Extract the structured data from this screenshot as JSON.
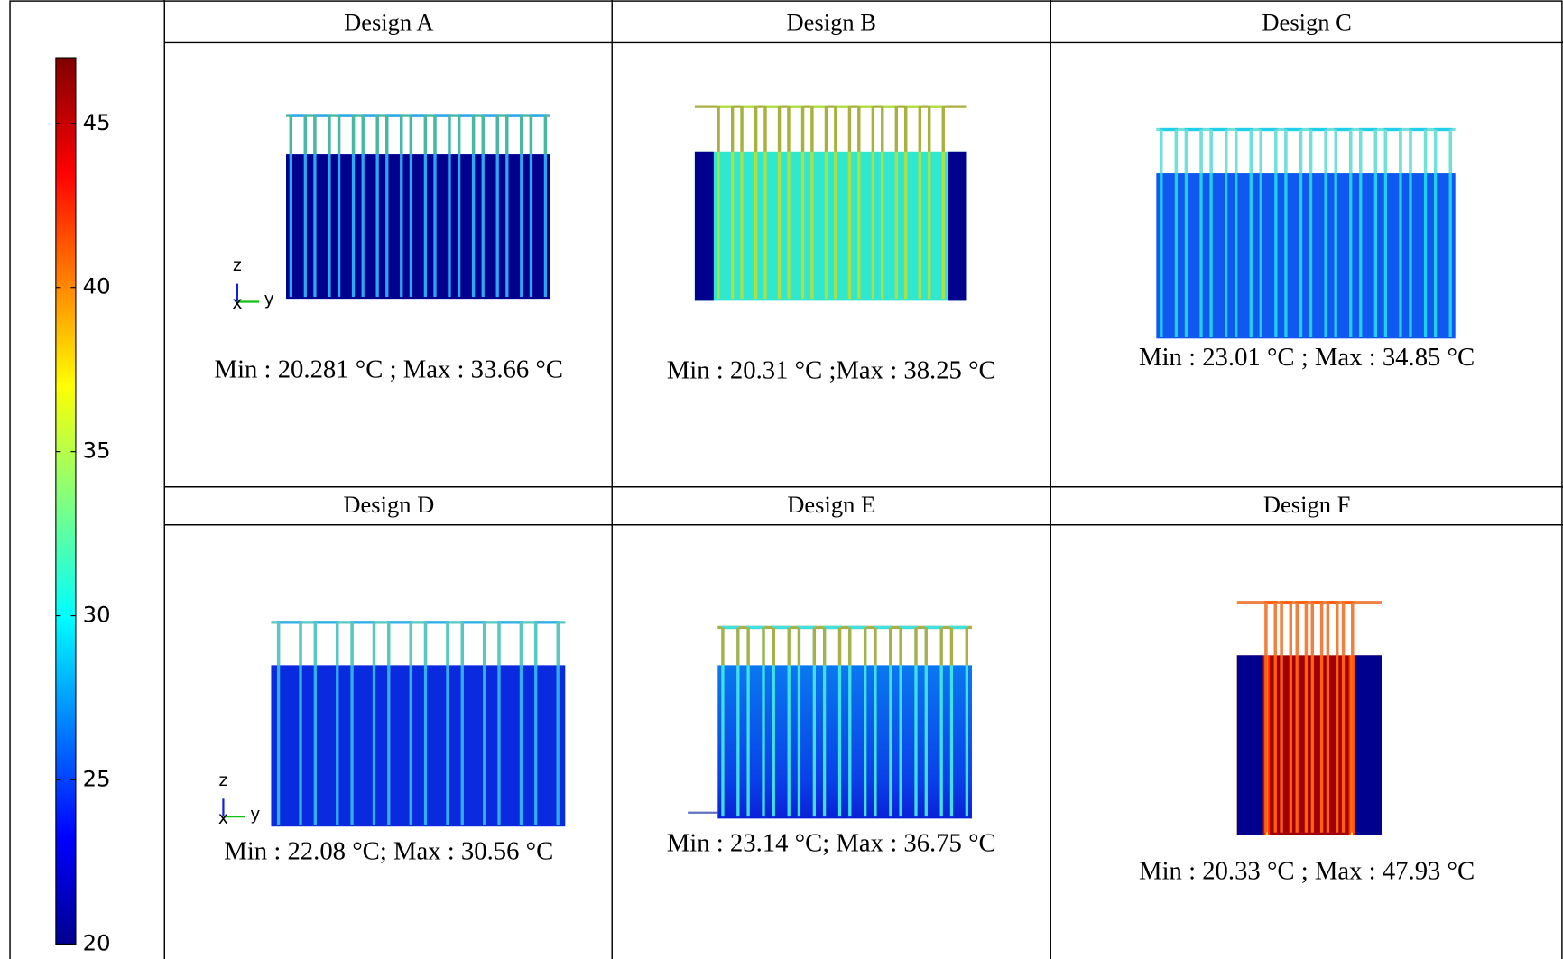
{
  "colorbar": {
    "lim": [
      20,
      47
    ],
    "ticks": [
      20,
      25,
      30,
      35,
      40,
      45
    ]
  },
  "designs": [
    {
      "title": "Design A",
      "caption": "Min : 20.281 °C  ;  Max : 33.66 °C",
      "axes": [
        "z",
        "x",
        "y"
      ]
    },
    {
      "title": "Design B",
      "caption": "Min : 20.31 °C ;Max : 38.25 °C"
    },
    {
      "title": "Design C",
      "caption": "Min : 23.01 °C ;  Max : 34.85 °C"
    },
    {
      "title": "Design D",
      "caption": "Min : 22.08 °C; Max : 30.56 °C",
      "axes": [
        "z",
        "x",
        "y"
      ]
    },
    {
      "title": "Design E",
      "caption": "Min : 23.14 °C; Max : 36.75 °C"
    },
    {
      "title": "Design F",
      "caption": "Min : 20.33 °C ; Max : 47.93 °C"
    }
  ]
}
